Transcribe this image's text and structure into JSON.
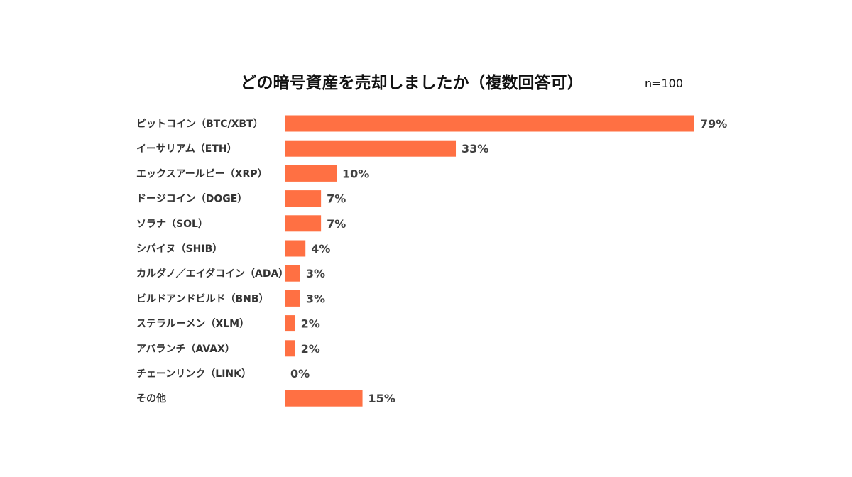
{
  "chart_data": {
    "type": "bar",
    "orientation": "horizontal",
    "title": "どの暗号資産を売却しましたか（複数回答可）",
    "sample_size": "n=100",
    "categories": [
      "ビットコイン（BTC/XBT）",
      "イーサリアム（ETH）",
      "エックスアールピー（XRP）",
      "ドージコイン（DOGE）",
      "ソラナ（SOL）",
      "シバイヌ（SHIB）",
      "カルダノ／エイダコイン（ADA）",
      "ビルドアンドビルド（BNB）",
      "ステラルーメン（XLM）",
      "アバランチ（AVAX）",
      "チェーンリンク（LINK）",
      "その他"
    ],
    "values": [
      79,
      33,
      10,
      7,
      7,
      4,
      3,
      3,
      2,
      2,
      0,
      15
    ],
    "value_labels": [
      "79%",
      "33%",
      "10%",
      "7%",
      "7%",
      "4%",
      "3%",
      "3%",
      "2%",
      "2%",
      "0%",
      "15%"
    ],
    "unit": "%",
    "xlim": [
      0,
      79
    ],
    "grid": false,
    "legend": "none",
    "bar_color": "#ff7043"
  }
}
